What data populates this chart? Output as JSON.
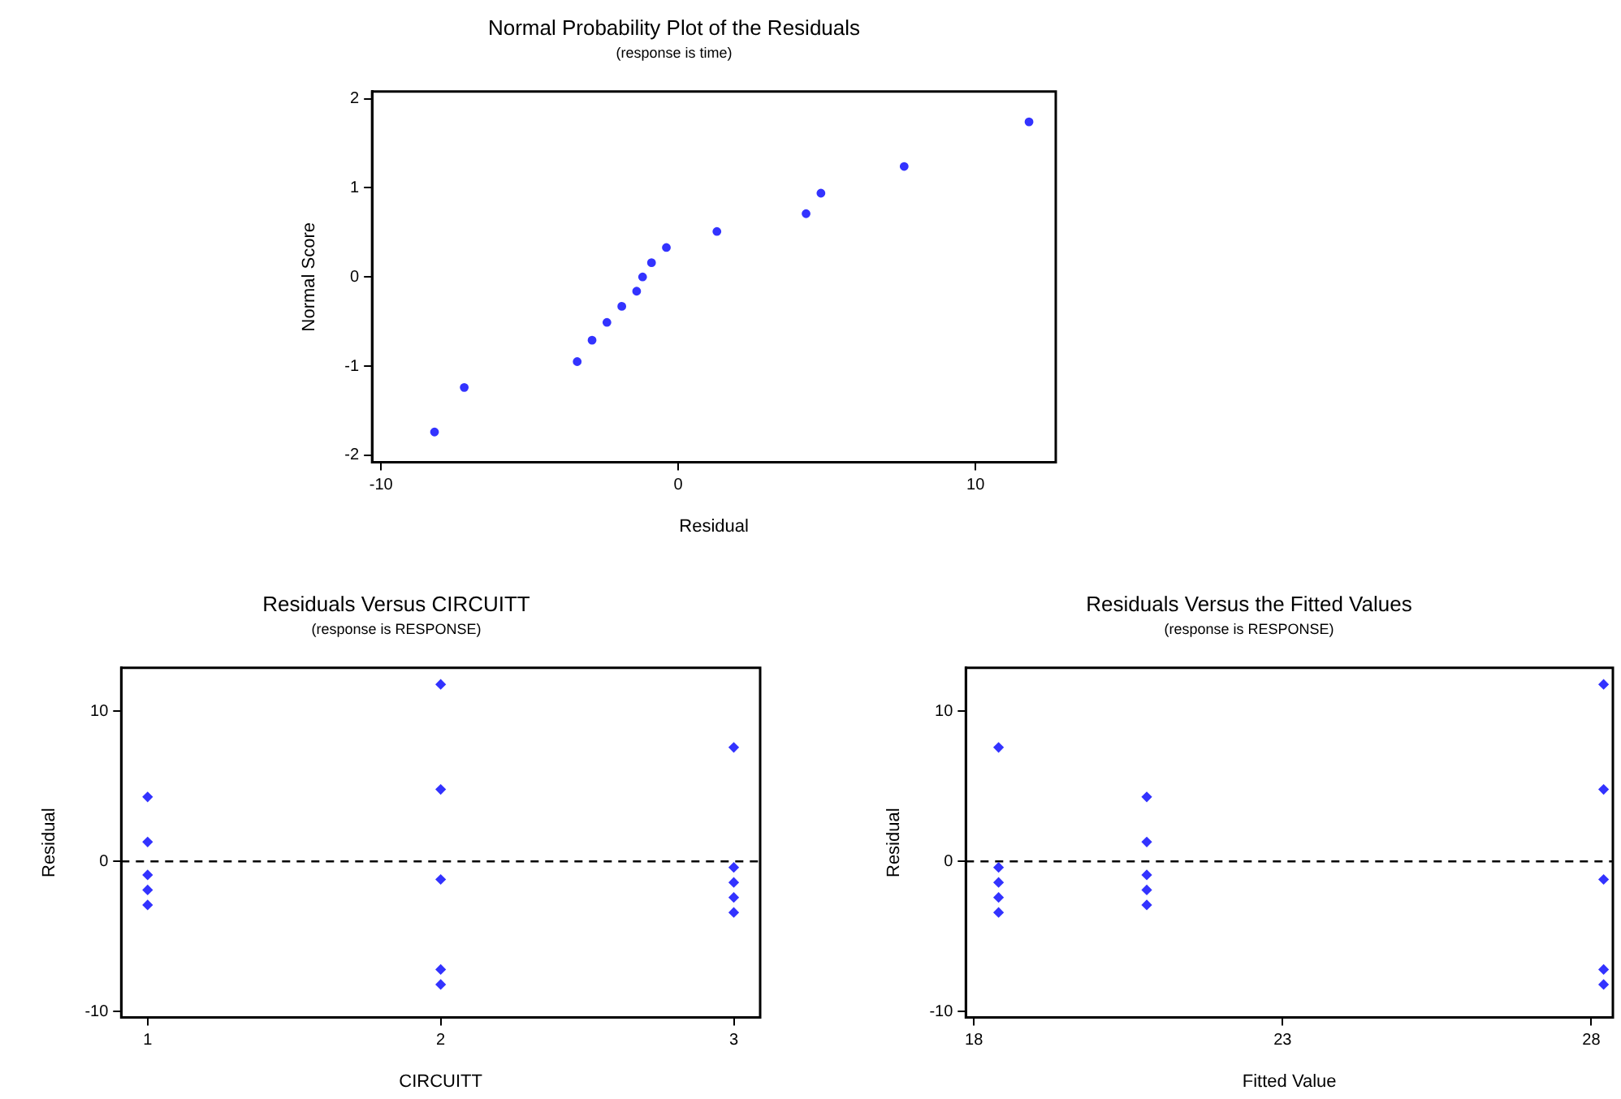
{
  "chart_data": [
    {
      "type": "scatter",
      "title": "Normal Probability Plot of the Residuals",
      "subtitle": "(response is time)",
      "xlabel": "Residual",
      "ylabel": "Normal Score",
      "x": [
        -8.2,
        -7.2,
        -3.4,
        -2.9,
        -2.4,
        -1.9,
        -1.4,
        -1.2,
        -0.9,
        -0.4,
        1.3,
        4.3,
        4.8,
        7.6,
        11.8
      ],
      "series": [
        {
          "color": "#3333ff",
          "values": [
            -1.74,
            -1.24,
            -0.95,
            -0.71,
            -0.51,
            -0.33,
            -0.16,
            0,
            0.16,
            0.33,
            0.51,
            0.71,
            0.94,
            1.24,
            1.74
          ]
        }
      ],
      "xlim": [
        -10.3,
        12.7
      ],
      "xticks": [
        -10,
        0,
        10
      ],
      "ylim": [
        -2.08,
        2.08
      ],
      "yticks": [
        -2,
        -1,
        0,
        1,
        2
      ],
      "grid": false,
      "legend": false,
      "marker": "circle"
    },
    {
      "type": "scatter",
      "title": "Residuals Versus CIRCUITT",
      "subtitle": "(response is RESPONSE)",
      "xlabel": "CIRCUITT",
      "ylabel": "Residual",
      "x": [
        1,
        1,
        1,
        1,
        1,
        2,
        2,
        2,
        2,
        2,
        3,
        3,
        3,
        3,
        3
      ],
      "series": [
        {
          "color": "#3333ff",
          "values": [
            4.3,
            1.3,
            -0.9,
            -1.9,
            -2.9,
            11.8,
            4.8,
            -1.2,
            -7.2,
            -8.2,
            7.6,
            -0.4,
            -1.4,
            -2.4,
            -3.4
          ]
        }
      ],
      "xlim": [
        0.91,
        3.09
      ],
      "xticks": [
        1,
        2,
        3
      ],
      "ylim": [
        -10.4,
        12.9
      ],
      "yticks": [
        -10,
        0,
        10
      ],
      "grid": false,
      "legend": false,
      "marker": "diamond",
      "ref_lines": [
        {
          "axis": "y",
          "value": 0,
          "color": "#000000",
          "line_style": "dashed"
        }
      ]
    },
    {
      "type": "scatter",
      "title": "Residuals Versus the Fitted Values",
      "subtitle": "(response is RESPONSE)",
      "xlabel": "Fitted Value",
      "ylabel": "Residual",
      "x": [
        20.8,
        20.8,
        20.8,
        20.8,
        20.8,
        28.2,
        28.2,
        28.2,
        28.2,
        28.2,
        18.4,
        18.4,
        18.4,
        18.4,
        18.4
      ],
      "series": [
        {
          "color": "#3333ff",
          "values": [
            4.3,
            1.3,
            -0.9,
            -1.9,
            -2.9,
            11.8,
            4.8,
            -1.2,
            -7.2,
            -8.2,
            7.6,
            -0.4,
            -1.4,
            -2.4,
            -3.4
          ]
        }
      ],
      "xlim": [
        17.87,
        28.35
      ],
      "xticks": [
        18,
        23,
        28
      ],
      "ylim": [
        -10.4,
        12.9
      ],
      "yticks": [
        -10,
        0,
        10
      ],
      "grid": false,
      "legend": false,
      "marker": "diamond",
      "ref_lines": [
        {
          "axis": "y",
          "value": 0,
          "color": "#000000",
          "line_style": "dashed"
        }
      ]
    }
  ]
}
